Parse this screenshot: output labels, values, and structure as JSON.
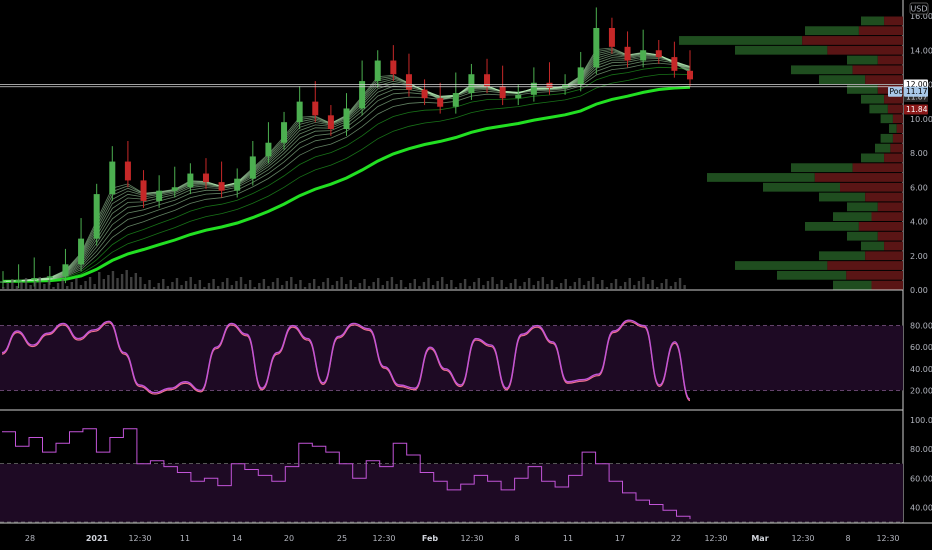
{
  "currency": "USD",
  "colors": {
    "up": "#4caf50",
    "down": "#c62828",
    "ma_bright": "#22e022",
    "ma_dim": "#b4ecb4",
    "oscillator_line": "#c254d8",
    "oscillator_line2": "#f07090",
    "band_fill": "#1e0a24",
    "grid": "#3a3a3a",
    "volume": "#5a5a5a"
  },
  "price_axis": {
    "ticks": [
      "16.00",
      "14.00",
      "12.00",
      "10.00",
      "8.00",
      "6.00",
      "4.00",
      "2.00",
      "0.00"
    ]
  },
  "price_badges": {
    "last": "12.00",
    "high_line": "11.87",
    "close": "11.84",
    "poc": "Poc",
    "poc_value": "11.17"
  },
  "stoch_axis": {
    "ticks": [
      "80.00",
      "60.00",
      "40.00",
      "20.00"
    ]
  },
  "rsi_axis": {
    "ticks": [
      "100.00",
      "80.00",
      "60.00",
      "40.00"
    ]
  },
  "time_axis": {
    "ticks": [
      "28",
      "2021",
      "12:30",
      "11",
      "14",
      "20",
      "25",
      "12:30",
      "Feb",
      "12:30",
      "8",
      "11",
      "17",
      "22",
      "12:30",
      "Mar",
      "12:30",
      "8",
      "12:30"
    ],
    "bold": [
      "2021",
      "Feb",
      "Mar"
    ]
  },
  "chart_data": [
    {
      "type": "line",
      "panel": "price",
      "series": [
        {
          "values": [
            0.5,
            0.6,
            0.7,
            0.8,
            1.5,
            3.0,
            5.6,
            7.5,
            6.4,
            5.2,
            5.8,
            6.0,
            6.8,
            6.3,
            5.8,
            6.5,
            7.8,
            8.6,
            9.8,
            11.0,
            10.2,
            9.4,
            10.6,
            12.2,
            13.4,
            12.6,
            11.7,
            11.2,
            10.7,
            11.5,
            12.6,
            11.9,
            11.2,
            11.4,
            12.1,
            11.8,
            12.0,
            13.0,
            15.3,
            14.2,
            13.4,
            14.0,
            13.6,
            12.8,
            12.3
          ]
        }
      ],
      "xlim": [
        0,
        44
      ],
      "ylim": [
        0,
        16
      ]
    },
    {
      "type": "bar",
      "panel": "volume_profile",
      "series": [
        {
          "values": [
            0.25,
            0.45,
            0.6,
            0.3,
            0.15,
            0.2,
            0.35,
            0.25,
            0.2,
            0.3,
            0.5,
            0.7,
            0.4,
            0.15,
            0.1,
            0.08,
            0.05,
            0.08,
            0.12,
            0.15,
            0.2,
            0.3,
            0.4,
            0.2,
            0.6,
            0.8,
            0.35,
            0.15
          ]
        }
      ],
      "ylim": [
        0,
        16
      ]
    },
    {
      "type": "line",
      "panel": "stochastic",
      "series": [
        {
          "values": [
            55,
            75,
            62,
            73,
            82,
            68,
            76,
            84,
            55,
            25,
            18,
            22,
            28,
            20,
            60,
            82,
            72,
            22,
            55,
            80,
            68,
            27,
            70,
            82,
            77,
            42,
            25,
            22,
            60,
            40,
            25,
            68,
            62,
            22,
            72,
            80,
            65,
            28,
            30,
            35,
            75,
            85,
            80,
            25,
            65,
            12
          ]
        }
      ],
      "ylim": [
        0,
        100
      ]
    },
    {
      "type": "line",
      "panel": "rsi",
      "series": [
        {
          "values": [
            92,
            82,
            88,
            78,
            84,
            92,
            94,
            78,
            88,
            94,
            70,
            72,
            68,
            64,
            58,
            60,
            55,
            70,
            66,
            62,
            58,
            68,
            84,
            82,
            78,
            70,
            60,
            72,
            68,
            84,
            76,
            64,
            58,
            52,
            56,
            62,
            58,
            52,
            60,
            68,
            58,
            54,
            62,
            78,
            70,
            58,
            50,
            45,
            42,
            38,
            34,
            32
          ]
        }
      ],
      "ylim": [
        30,
        100
      ]
    }
  ]
}
